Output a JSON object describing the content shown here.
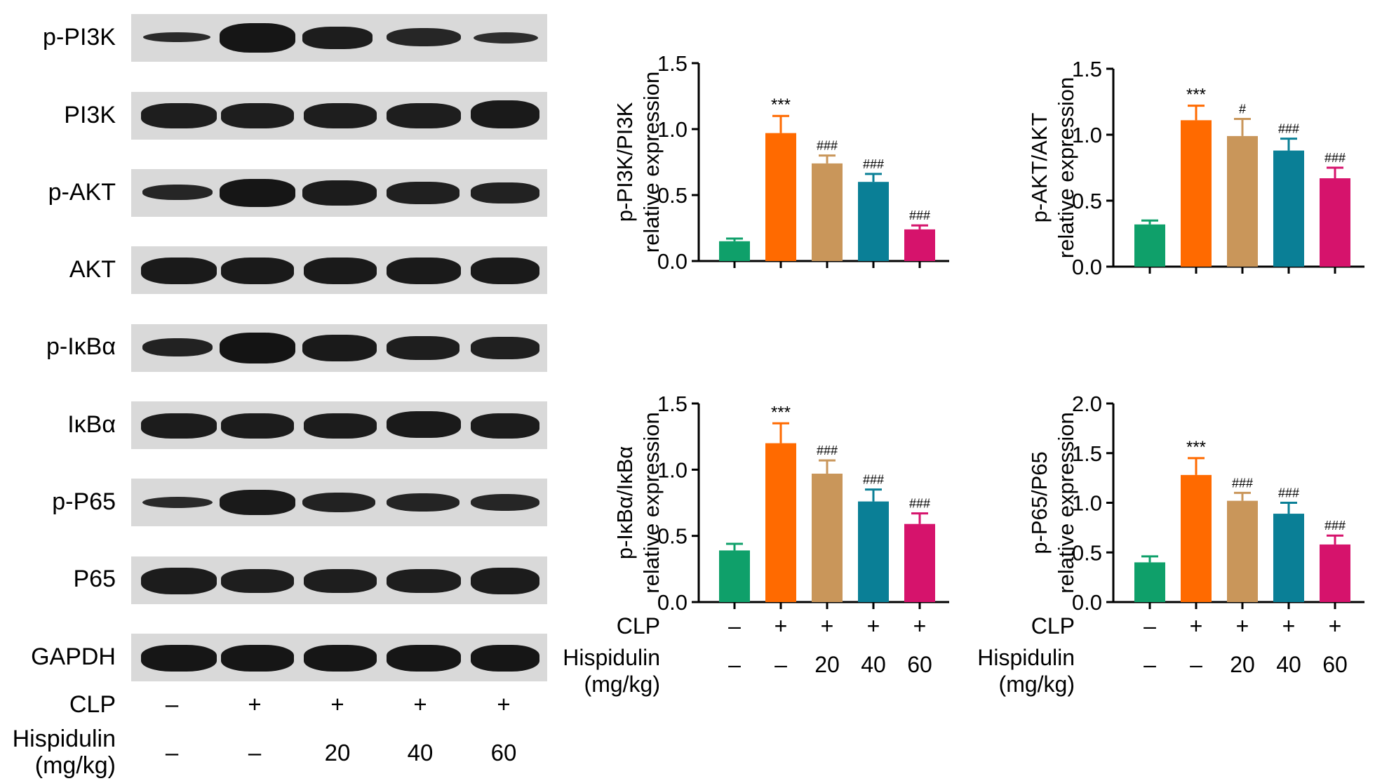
{
  "blot": {
    "labels": [
      "p-PI3K",
      "PI3K",
      "p-AKT",
      "AKT",
      "p-IκBα",
      "IκBα",
      "p-P65",
      "P65",
      "GAPDH"
    ],
    "clp_label": "CLP",
    "hisp_label_line1": "Hispidulin",
    "hisp_label_line2": "(mg/kg)",
    "clp_signs": [
      "–",
      "+",
      "+",
      "+",
      "+"
    ],
    "hisp_doses": [
      "–",
      "–",
      "20",
      "40",
      "60"
    ]
  },
  "colors": {
    "bars": [
      "#0fa06a",
      "#ff6a00",
      "#c9965a",
      "#0a7f96",
      "#d6136c"
    ]
  },
  "chart_data": [
    {
      "type": "bar",
      "ylabel_line1": "p-PI3K/PI3K",
      "ylabel_line2": "relative expression",
      "ylim": [
        0,
        1.5
      ],
      "yticks": [
        "0.0",
        "0.5",
        "1.0",
        "1.5"
      ],
      "values": [
        0.15,
        0.97,
        0.74,
        0.6,
        0.24
      ],
      "errors": [
        0.02,
        0.13,
        0.06,
        0.06,
        0.03
      ],
      "annotations": [
        "",
        "***",
        "###",
        "###",
        "###"
      ]
    },
    {
      "type": "bar",
      "ylabel_line1": "p-AKT/AKT",
      "ylabel_line2": "relative expression",
      "ylim": [
        0,
        1.5
      ],
      "yticks": [
        "0.0",
        "0.5",
        "1.0",
        "1.5"
      ],
      "values": [
        0.32,
        1.11,
        0.99,
        0.88,
        0.67
      ],
      "errors": [
        0.03,
        0.11,
        0.13,
        0.09,
        0.08
      ],
      "annotations": [
        "",
        "***",
        "#",
        "###",
        "###"
      ]
    },
    {
      "type": "bar",
      "ylabel_line1": "p-IκBα/IκBα",
      "ylabel_line2": "relative expression",
      "ylim": [
        0,
        1.5
      ],
      "yticks": [
        "0.0",
        "0.5",
        "1.0",
        "1.5"
      ],
      "values": [
        0.39,
        1.2,
        0.97,
        0.76,
        0.59
      ],
      "errors": [
        0.05,
        0.15,
        0.1,
        0.09,
        0.08
      ],
      "annotations": [
        "",
        "***",
        "###",
        "###",
        "###"
      ],
      "clp_label": "CLP",
      "hisp_label_line1": "Hispidulin",
      "hisp_label_line2": "(mg/kg)",
      "clp_signs": [
        "–",
        "+",
        "+",
        "+",
        "+"
      ],
      "hisp_doses": [
        "–",
        "–",
        "20",
        "40",
        "60"
      ]
    },
    {
      "type": "bar",
      "ylabel_line1": "p-P65/P65",
      "ylabel_line2": "relative expression",
      "ylim": [
        0,
        2.0
      ],
      "yticks": [
        "0.0",
        "0.5",
        "1.0",
        "1.5",
        "2.0"
      ],
      "values": [
        0.4,
        1.28,
        1.02,
        0.89,
        0.58
      ],
      "errors": [
        0.06,
        0.17,
        0.08,
        0.11,
        0.09
      ],
      "annotations": [
        "",
        "***",
        "###",
        "###",
        "###"
      ],
      "clp_label": "CLP",
      "hisp_label_line1": "Hispidulin",
      "hisp_label_line2": "(mg/kg)",
      "clp_signs": [
        "–",
        "+",
        "+",
        "+",
        "+"
      ],
      "hisp_doses": [
        "–",
        "–",
        "20",
        "40",
        "60"
      ]
    }
  ]
}
